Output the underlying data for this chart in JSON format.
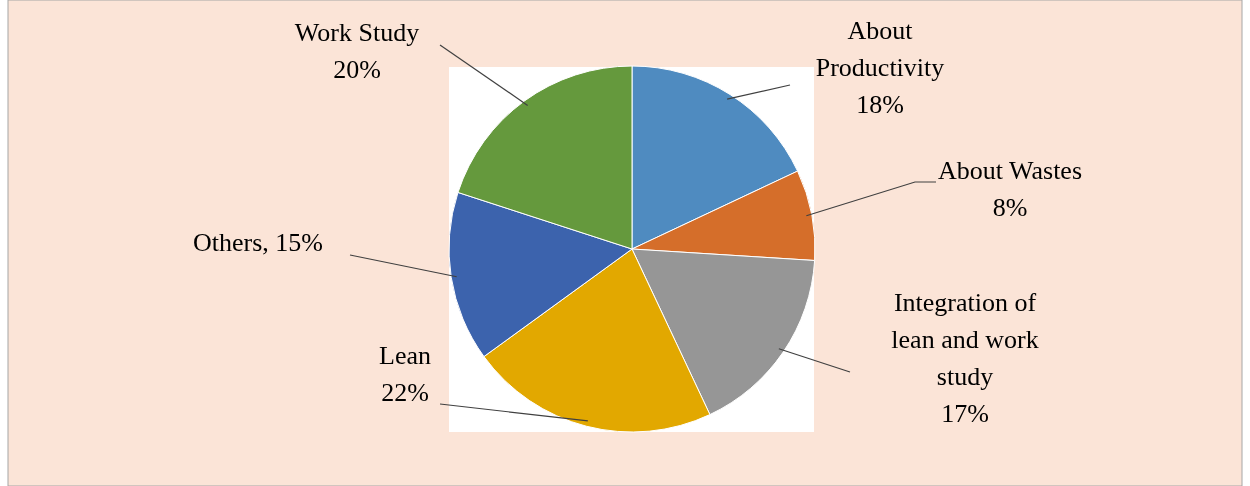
{
  "chart_data": {
    "type": "pie",
    "categories": [
      "About Productivity",
      "About Wastes",
      "Integration of lean and work study",
      "Lean",
      "Others",
      "Work Study"
    ],
    "values": [
      18,
      8,
      17,
      22,
      15,
      20
    ],
    "value_labels": [
      "18%",
      "8%",
      "17%",
      "22%",
      "15%",
      "20%"
    ],
    "colors": [
      "#4f8bc0",
      "#d56e2a",
      "#969696",
      "#e2a800",
      "#3c63ad",
      "#65993d"
    ]
  }
}
